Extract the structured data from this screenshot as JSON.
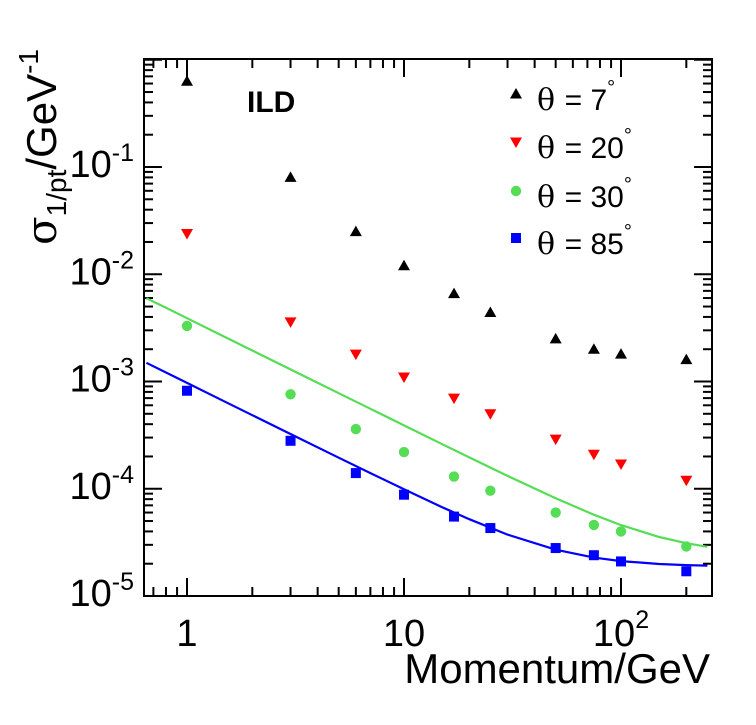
{
  "chart_data": {
    "type": "scatter",
    "title": "",
    "annotation": "ILD",
    "xlabel": "Momentum/GeV",
    "ylabel": {
      "symbol": "σ",
      "subscript": "1/pt",
      "suffix": "/GeV",
      "suffix_exponent": "-1"
    },
    "xscale": "log",
    "yscale": "log",
    "xlim": [
      0.65,
      250
    ],
    "ylim": [
      8e-06,
      1.1
    ],
    "legend_position": "top-right",
    "x_tick_labels": [
      {
        "value": 1,
        "base": "1",
        "exp": ""
      },
      {
        "value": 10,
        "base": "10",
        "exp": ""
      },
      {
        "value": 100,
        "base": "10",
        "exp": "2"
      }
    ],
    "y_tick_labels": [
      {
        "value": 0.1,
        "base": "10",
        "exp": "-1"
      },
      {
        "value": 0.01,
        "base": "10",
        "exp": "-2"
      },
      {
        "value": 0.001,
        "base": "10",
        "exp": "-3"
      },
      {
        "value": 0.0001,
        "base": "10",
        "exp": "-4"
      },
      {
        "value": 1e-05,
        "base": "10",
        "exp": "-5"
      }
    ],
    "series": [
      {
        "name": "θ = 7°",
        "label_text": "= 7",
        "marker": "triangle-up",
        "color": "#000000",
        "x": [
          1,
          3,
          6,
          10,
          17,
          25,
          50,
          75,
          100,
          200
        ],
        "y": [
          0.63,
          0.08,
          0.025,
          0.012,
          0.0066,
          0.0044,
          0.0025,
          0.002,
          0.0018,
          0.0016
        ]
      },
      {
        "name": "θ = 20°",
        "label_text": "= 20",
        "marker": "triangle-down",
        "color": "#ff0000",
        "x": [
          1,
          3,
          6,
          10,
          17,
          25,
          50,
          75,
          100,
          200
        ],
        "y": [
          0.024,
          0.0036,
          0.0018,
          0.0011,
          0.0007,
          0.0005,
          0.00029,
          0.00021,
          0.00017,
          0.00012
        ]
      },
      {
        "name": "θ = 30°",
        "label_text": "= 30",
        "marker": "circle",
        "color": "#55dd55",
        "x": [
          1,
          3,
          6,
          10,
          17,
          25,
          50,
          75,
          100,
          200
        ],
        "y": [
          0.0033,
          0.00076,
          0.00036,
          0.00022,
          0.00013,
          9.6e-05,
          6e-05,
          4.6e-05,
          4e-05,
          2.9e-05
        ]
      },
      {
        "name": "θ = 85°",
        "label_text": "= 85",
        "marker": "square",
        "color": "#0000ff",
        "x": [
          1,
          3,
          6,
          10,
          17,
          25,
          50,
          75,
          100,
          200
        ],
        "y": [
          0.00082,
          0.00028,
          0.00014,
          8.8e-05,
          5.5e-05,
          4.3e-05,
          2.8e-05,
          2.4e-05,
          2.1e-05,
          1.7e-05
        ]
      }
    ],
    "curves": [
      {
        "color": "#55dd55",
        "matches": "θ = 30°",
        "a": 0.00389,
        "b": 2.42e-05,
        "x": [
          0.65,
          0.8,
          1,
          1.5,
          2,
          3,
          5,
          7,
          10,
          15,
          20,
          30,
          50,
          75,
          100,
          150,
          200,
          250
        ]
      },
      {
        "color": "#0000ff",
        "matches": "θ = 85°",
        "a": 0.00097,
        "b": 1.88e-05,
        "x": [
          0.65,
          0.8,
          1,
          1.5,
          2,
          3,
          5,
          7,
          10,
          15,
          20,
          30,
          50,
          75,
          100,
          150,
          200,
          250
        ]
      }
    ]
  }
}
